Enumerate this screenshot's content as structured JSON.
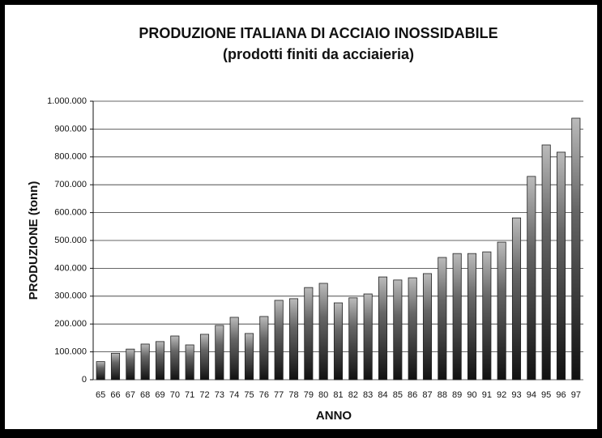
{
  "chart_data": {
    "type": "bar",
    "title": "PRODUZIONE ITALIANA DI ACCIAIO INOSSIDABILE",
    "subtitle": "(prodotti finiti da acciaieria)",
    "x_label": "ANNO",
    "y_label": "PRODUZIONE (tonn)",
    "categories": [
      "65",
      "66",
      "67",
      "68",
      "69",
      "70",
      "71",
      "72",
      "73",
      "74",
      "75",
      "76",
      "77",
      "78",
      "79",
      "80",
      "81",
      "82",
      "83",
      "84",
      "85",
      "86",
      "87",
      "88",
      "89",
      "90",
      "91",
      "92",
      "93",
      "94",
      "95",
      "96",
      "97"
    ],
    "values": [
      65000,
      95000,
      110000,
      128000,
      137000,
      157000,
      125000,
      163000,
      195000,
      224000,
      166000,
      227000,
      285000,
      291000,
      331000,
      346000,
      276000,
      294000,
      308000,
      369000,
      358000,
      366000,
      381000,
      439000,
      453000,
      453000,
      459000,
      494000,
      581000,
      730000,
      843000,
      817000,
      939000
    ],
    "color": "#222222",
    "ylim": [
      0,
      1000000
    ],
    "yticks": [
      0,
      {
        "value": 100000,
        "label": "100.000"
      },
      {
        "value": 200000,
        "label": "200.000"
      },
      {
        "value": 300000,
        "label": "300.000"
      },
      {
        "value": 400000,
        "label": "400.000"
      },
      {
        "value": 500000,
        "label": "500.000"
      },
      {
        "value": 600000,
        "label": "600.000"
      },
      {
        "value": 700000,
        "label": "700.000"
      },
      {
        "value": 800000,
        "label": "800.000"
      },
      {
        "value": 900000,
        "label": "900.000"
      },
      {
        "value": 1000000,
        "label": "1.000.000"
      }
    ],
    "grid": true
  }
}
